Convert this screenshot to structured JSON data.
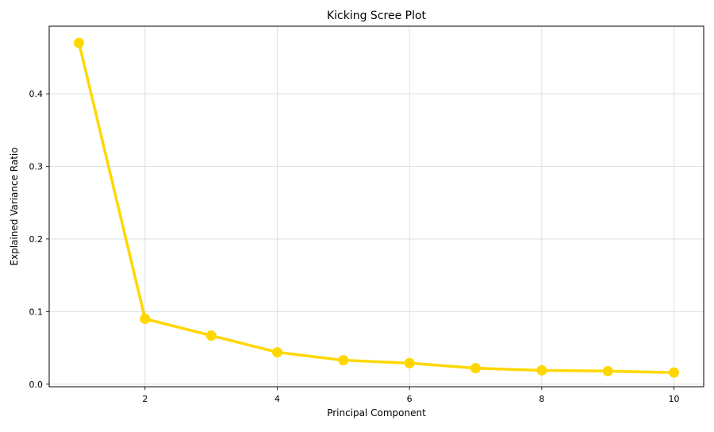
{
  "chart_data": {
    "type": "line",
    "title": "Kicking Scree Plot",
    "xlabel": "Principal Component",
    "ylabel": "Explained Variance Ratio",
    "x": [
      1,
      2,
      3,
      4,
      5,
      6,
      7,
      8,
      9,
      10
    ],
    "series": [
      {
        "values": [
          0.47,
          0.09,
          0.067,
          0.044,
          0.033,
          0.029,
          0.022,
          0.019,
          0.018,
          0.016
        ]
      }
    ],
    "xlim": [
      0.55,
      10.45
    ],
    "ylim": [
      -0.0035,
      0.493
    ],
    "xticks": [
      2,
      4,
      6,
      8,
      10
    ],
    "yticks": [
      0.0,
      0.1,
      0.2,
      0.3,
      0.4
    ],
    "xtick_labels": [
      "2",
      "4",
      "6",
      "8",
      "10"
    ],
    "ytick_labels": [
      "0.0",
      "0.1",
      "0.2",
      "0.3",
      "0.4"
    ],
    "grid": true,
    "line_color": "#FFD700",
    "grid_color": "#d9d9d9"
  }
}
